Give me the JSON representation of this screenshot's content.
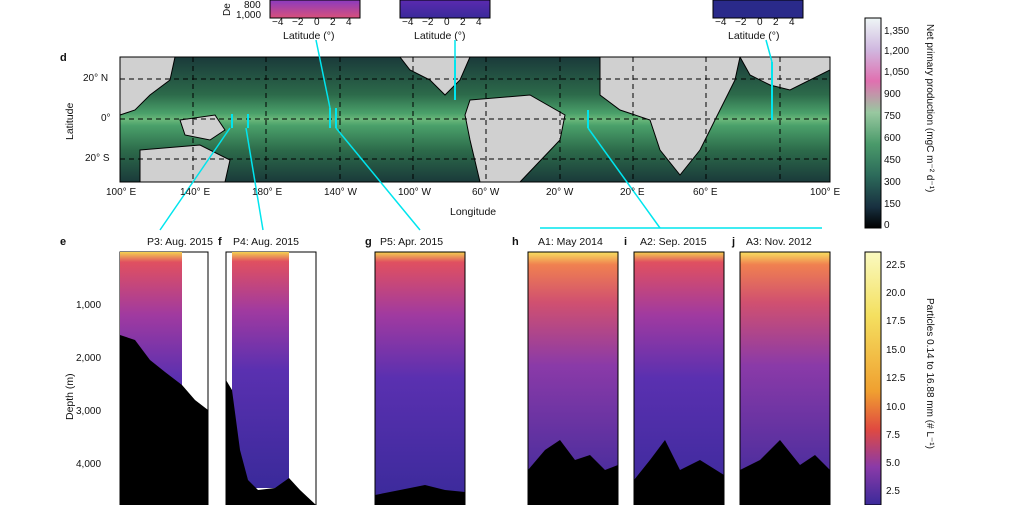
{
  "top_insets": {
    "xlabel": "Latitude (°)",
    "ticks": [
      "−4",
      "−2",
      "0",
      "2",
      "4"
    ],
    "depth_ticks_partial": [
      "800",
      "1,000"
    ],
    "ylabel_partial": "De"
  },
  "map": {
    "panel_label": "d",
    "ylabel": "Latitude",
    "xlabel": "Longitude",
    "lat_ticks": [
      "20° N",
      "0°",
      "20° S"
    ],
    "lon_ticks": [
      "100° E",
      "140° E",
      "180° E",
      "140° W",
      "100° W",
      "60° W",
      "20° W",
      "20° E",
      "60° E",
      "100° E"
    ]
  },
  "npp_colorbar": {
    "label": "Net primary production (mgC m⁻² d⁻¹)",
    "ticks": [
      "1,350",
      "1,200",
      "1,050",
      "900",
      "750",
      "600",
      "450",
      "300",
      "150",
      "0"
    ]
  },
  "profiles": {
    "ylabel": "Depth (m)",
    "depth_ticks": [
      "1,000",
      "2,000",
      "3,000",
      "4,000"
    ],
    "panels": [
      {
        "letter": "e",
        "title": "P3: Aug. 2015"
      },
      {
        "letter": "f",
        "title": "P4: Aug. 2015"
      },
      {
        "letter": "g",
        "title": "P5: Apr. 2015"
      },
      {
        "letter": "h",
        "title": "A1: May 2014"
      },
      {
        "letter": "i",
        "title": "A2: Sep. 2015"
      },
      {
        "letter": "j",
        "title": "A3: Nov. 2012"
      }
    ]
  },
  "particle_colorbar": {
    "label": "Particles 0.14 to 16.88 mm (# L⁻¹)",
    "ticks": [
      "22.5",
      "20.0",
      "17.5",
      "15.0",
      "12.5",
      "10.0",
      "7.5",
      "5.0",
      "2.5"
    ]
  },
  "colors": {
    "line": "#00e5ee",
    "deep_blue": "#3a2a9a",
    "land": "#d0d0d0"
  }
}
